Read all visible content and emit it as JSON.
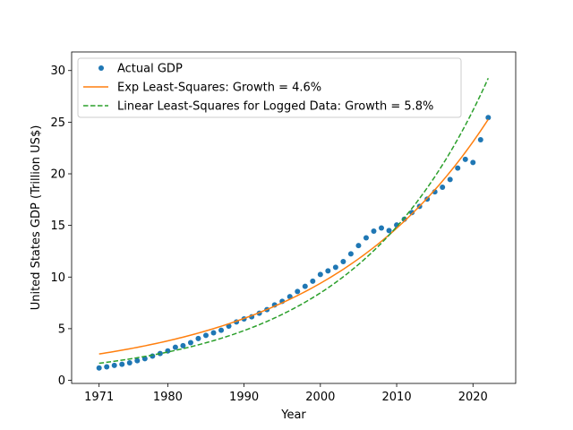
{
  "chart_data": {
    "type": "line",
    "xlabel": "Year",
    "ylabel": "United States GDP (Trillion US$)",
    "xlim": [
      1967.4,
      2025.6
    ],
    "ylim": [
      -0.3,
      31.8
    ],
    "x_ticks": [
      1971,
      1980,
      1990,
      2000,
      2010,
      2020
    ],
    "y_ticks": [
      0,
      5,
      10,
      15,
      20,
      25,
      30
    ],
    "grid": false,
    "legend_position": "top-left",
    "series": [
      {
        "name": "Actual GDP",
        "kind": "scatter",
        "color": "#1f77b4",
        "x": [
          1971,
          1972,
          1973,
          1974,
          1975,
          1976,
          1977,
          1978,
          1979,
          1980,
          1981,
          1982,
          1983,
          1984,
          1985,
          1986,
          1987,
          1988,
          1989,
          1990,
          1991,
          1992,
          1993,
          1994,
          1995,
          1996,
          1997,
          1998,
          1999,
          2000,
          2001,
          2002,
          2003,
          2004,
          2005,
          2006,
          2007,
          2008,
          2009,
          2010,
          2011,
          2012,
          2013,
          2014,
          2015,
          2016,
          2017,
          2018,
          2019,
          2020,
          2021,
          2022
        ],
        "y": [
          1.2,
          1.3,
          1.45,
          1.55,
          1.7,
          1.9,
          2.1,
          2.35,
          2.6,
          2.85,
          3.2,
          3.35,
          3.65,
          4.05,
          4.35,
          4.6,
          4.85,
          5.25,
          5.65,
          5.95,
          6.15,
          6.5,
          6.85,
          7.3,
          7.65,
          8.1,
          8.6,
          9.1,
          9.6,
          10.25,
          10.6,
          10.95,
          11.5,
          12.25,
          13.05,
          13.8,
          14.45,
          14.75,
          14.5,
          15.05,
          15.6,
          16.25,
          16.85,
          17.55,
          18.25,
          18.7,
          19.45,
          20.55,
          21.4,
          21.1,
          23.3,
          25.45
        ]
      },
      {
        "name": "Exp Least-Squares: Growth = 4.6%",
        "kind": "line",
        "color": "#ff7f0e",
        "x_start": 1971,
        "x_end": 2022,
        "y_start": 2.55,
        "growth_rate": 0.046
      },
      {
        "name": "Linear Least-Squares for Logged Data: Growth = 5.8%",
        "kind": "dashed-line",
        "color": "#2ca02c",
        "x_start": 1971,
        "x_end": 2022,
        "y_start": 1.65,
        "growth_rate": 0.058
      }
    ]
  }
}
